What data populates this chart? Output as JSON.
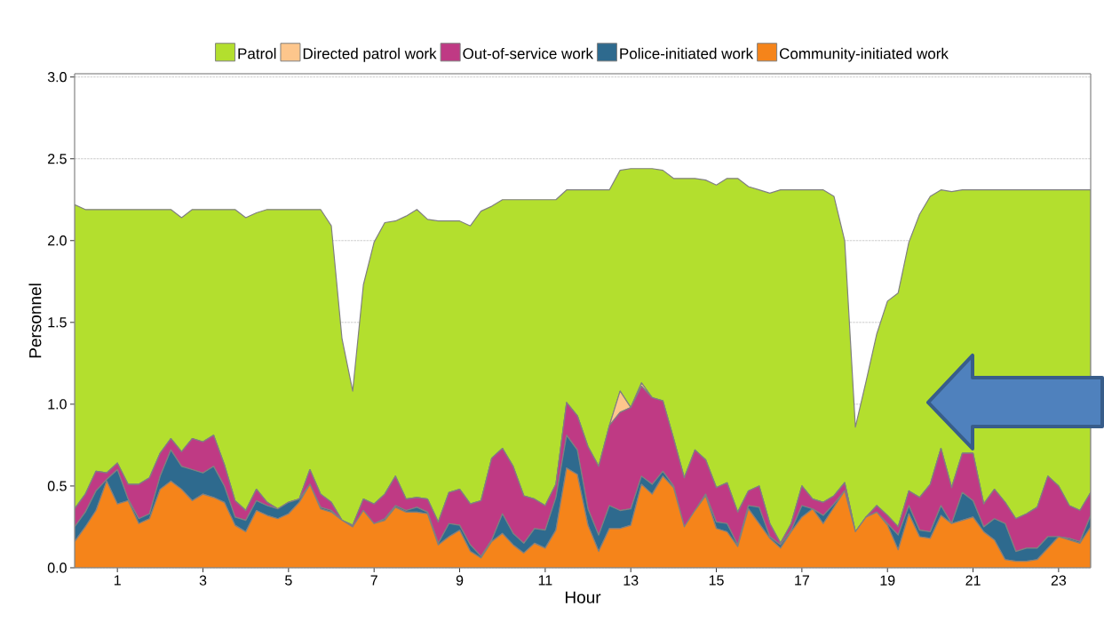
{
  "chart_data": {
    "type": "area",
    "stacked": true,
    "xlabel": "Hour",
    "ylabel": "Personnel",
    "x": [
      0,
      0.25,
      0.5,
      0.75,
      1,
      1.25,
      1.5,
      1.75,
      2,
      2.25,
      2.5,
      2.75,
      3,
      3.25,
      3.5,
      3.75,
      4,
      4.25,
      4.5,
      4.75,
      5,
      5.25,
      5.5,
      5.75,
      6,
      6.25,
      6.5,
      6.75,
      7,
      7.25,
      7.5,
      7.75,
      8,
      8.25,
      8.5,
      8.75,
      9,
      9.25,
      9.5,
      9.75,
      10,
      10.25,
      10.5,
      10.75,
      11,
      11.25,
      11.5,
      11.75,
      12,
      12.25,
      12.5,
      12.75,
      13,
      13.25,
      13.5,
      13.75,
      14,
      14.25,
      14.5,
      14.75,
      15,
      15.25,
      15.5,
      15.75,
      16,
      16.25,
      16.5,
      16.75,
      17,
      17.25,
      17.5,
      17.75,
      18,
      18.25,
      18.5,
      18.75,
      19,
      19.25,
      19.5,
      19.75,
      20,
      20.25,
      20.5,
      20.75,
      21,
      21.25,
      21.5,
      21.75,
      22,
      22.25,
      22.5,
      22.75,
      23,
      23.25,
      23.5,
      23.75
    ],
    "series": [
      {
        "name": "Community-initiated work",
        "color": "#f5841a",
        "values": [
          0.16,
          0.25,
          0.35,
          0.53,
          0.39,
          0.41,
          0.27,
          0.3,
          0.48,
          0.53,
          0.48,
          0.41,
          0.45,
          0.43,
          0.4,
          0.26,
          0.22,
          0.35,
          0.32,
          0.3,
          0.33,
          0.4,
          0.51,
          0.36,
          0.34,
          0.29,
          0.25,
          0.35,
          0.27,
          0.29,
          0.37,
          0.34,
          0.34,
          0.33,
          0.14,
          0.19,
          0.23,
          0.1,
          0.06,
          0.16,
          0.21,
          0.14,
          0.09,
          0.15,
          0.12,
          0.23,
          0.61,
          0.57,
          0.26,
          0.1,
          0.24,
          0.24,
          0.26,
          0.51,
          0.45,
          0.56,
          0.49,
          0.25,
          0.35,
          0.44,
          0.24,
          0.22,
          0.13,
          0.36,
          0.27,
          0.18,
          0.12,
          0.22,
          0.31,
          0.36,
          0.27,
          0.37,
          0.47,
          0.22,
          0.31,
          0.34,
          0.26,
          0.11,
          0.33,
          0.19,
          0.18,
          0.32,
          0.27,
          0.29,
          0.31,
          0.22,
          0.17,
          0.05,
          0.04,
          0.04,
          0.05,
          0.12,
          0.19,
          0.17,
          0.15,
          0.25
        ]
      },
      {
        "name": "Police-initiated work",
        "color": "#2e6a8e",
        "values": [
          0.09,
          0.09,
          0.12,
          0.01,
          0.21,
          0.01,
          0.03,
          0.03,
          0.08,
          0.19,
          0.14,
          0.19,
          0.13,
          0.19,
          0.1,
          0.05,
          0.07,
          0.06,
          0.06,
          0.06,
          0.07,
          0.02,
          0,
          0.01,
          0.01,
          0,
          0,
          0,
          0,
          0.01,
          0.01,
          0.01,
          0.03,
          0.01,
          0.01,
          0.08,
          0.03,
          0.04,
          0.01,
          0.01,
          0.12,
          0.07,
          0.06,
          0.09,
          0.11,
          0.2,
          0.2,
          0.15,
          0.1,
          0.1,
          0.14,
          0.11,
          0.1,
          0.05,
          0.06,
          0.03,
          0.01,
          0,
          0,
          0.01,
          0.04,
          0.05,
          0.01,
          0.02,
          0.1,
          0.01,
          0.02,
          0.01,
          0.07,
          0,
          0.05,
          0.02,
          0,
          0,
          0,
          0,
          0.01,
          0.09,
          0.05,
          0.04,
          0.04,
          0.06,
          0,
          0.17,
          0.1,
          0.03,
          0.13,
          0.22,
          0.06,
          0.08,
          0.07,
          0.07,
          0,
          0.01,
          0.01,
          0.07
        ]
      },
      {
        "name": "Out-of-service work",
        "color": "#bf3a84",
        "values": [
          0.11,
          0.11,
          0.12,
          0.04,
          0.04,
          0.09,
          0.21,
          0.22,
          0.14,
          0.07,
          0.09,
          0.19,
          0.19,
          0.19,
          0.13,
          0.1,
          0.06,
          0.07,
          0.02,
          0,
          0,
          0,
          0.09,
          0.08,
          0.05,
          0,
          0.01,
          0.07,
          0.12,
          0.15,
          0.18,
          0.07,
          0.06,
          0.08,
          0.13,
          0.19,
          0.22,
          0.25,
          0.34,
          0.5,
          0.4,
          0.41,
          0.29,
          0.18,
          0.15,
          0.08,
          0.2,
          0.21,
          0.38,
          0.42,
          0.49,
          0.6,
          0.62,
          0.55,
          0.53,
          0.43,
          0.29,
          0.3,
          0.37,
          0.21,
          0.21,
          0.25,
          0.2,
          0.09,
          0.13,
          0.08,
          0.01,
          0.04,
          0.12,
          0.06,
          0.08,
          0.05,
          0.05,
          0,
          0,
          0.04,
          0.05,
          0.05,
          0.09,
          0.2,
          0.29,
          0.35,
          0.22,
          0.24,
          0.29,
          0.14,
          0.18,
          0.13,
          0.2,
          0.21,
          0.25,
          0.37,
          0.31,
          0.2,
          0.19,
          0.14
        ]
      },
      {
        "name": "Directed patrol work",
        "color": "#fdc68c",
        "values": [
          0,
          0,
          0,
          0,
          0,
          0,
          0,
          0,
          0,
          0,
          0,
          0,
          0,
          0,
          0,
          0,
          0,
          0,
          0,
          0,
          0,
          0,
          0,
          0,
          0,
          0,
          0,
          0,
          0,
          0,
          0,
          0,
          0,
          0,
          0,
          0,
          0,
          0,
          0,
          0,
          0,
          0,
          0,
          0,
          0,
          0,
          0,
          0,
          0,
          0,
          0,
          0.13,
          0,
          0.02,
          0,
          0,
          0,
          0,
          0,
          0,
          0,
          0,
          0,
          0,
          0,
          0,
          0,
          0,
          0,
          0,
          0,
          0,
          0,
          0,
          0,
          0,
          0,
          0,
          0,
          0,
          0,
          0,
          0,
          0,
          0,
          0,
          0,
          0,
          0,
          0,
          0,
          0,
          0,
          0,
          0,
          0
        ]
      },
      {
        "name": "Patrol",
        "color": "#b3df2e",
        "values": [
          1.86,
          1.74,
          1.6,
          1.61,
          1.55,
          1.68,
          1.68,
          1.64,
          1.49,
          1.4,
          1.43,
          1.4,
          1.42,
          1.38,
          1.56,
          1.78,
          1.79,
          1.69,
          1.79,
          1.83,
          1.79,
          1.77,
          1.59,
          1.74,
          1.69,
          1.11,
          0.82,
          1.31,
          1.6,
          1.66,
          1.56,
          1.73,
          1.76,
          1.71,
          1.84,
          1.66,
          1.64,
          1.7,
          1.77,
          1.54,
          1.52,
          1.63,
          1.81,
          1.83,
          1.87,
          1.74,
          1.3,
          1.38,
          1.57,
          1.69,
          1.44,
          1.35,
          1.46,
          1.31,
          1.4,
          1.41,
          1.59,
          1.83,
          1.66,
          1.71,
          1.85,
          1.86,
          2.04,
          1.86,
          1.81,
          2.02,
          2.16,
          2.04,
          1.81,
          1.89,
          1.91,
          1.83,
          1.48,
          0.64,
          0.83,
          1.05,
          1.31,
          1.43,
          1.52,
          1.73,
          1.76,
          1.58,
          1.81,
          1.61,
          1.61,
          1.92,
          1.83,
          1.91,
          2.01,
          1.98,
          1.94,
          1.75,
          1.81,
          1.93,
          1.96,
          1.85
        ]
      }
    ],
    "xlim": [
      0,
      23.75
    ],
    "xticks": [
      1,
      3,
      5,
      7,
      9,
      11,
      13,
      15,
      17,
      19,
      21,
      23
    ],
    "ylim": [
      0,
      3.02
    ],
    "yticks": [
      {
        "value": 0,
        "label": "0.0"
      },
      {
        "value": 0.5,
        "label": "0.5"
      },
      {
        "value": 1,
        "label": "1.0"
      },
      {
        "value": 1.5,
        "label": "1.5"
      },
      {
        "value": 2,
        "label": "2.0"
      },
      {
        "value": 2.5,
        "label": "2.5"
      },
      {
        "value": 3,
        "label": "3.0"
      }
    ],
    "grid": "y",
    "legend": "top"
  }
}
